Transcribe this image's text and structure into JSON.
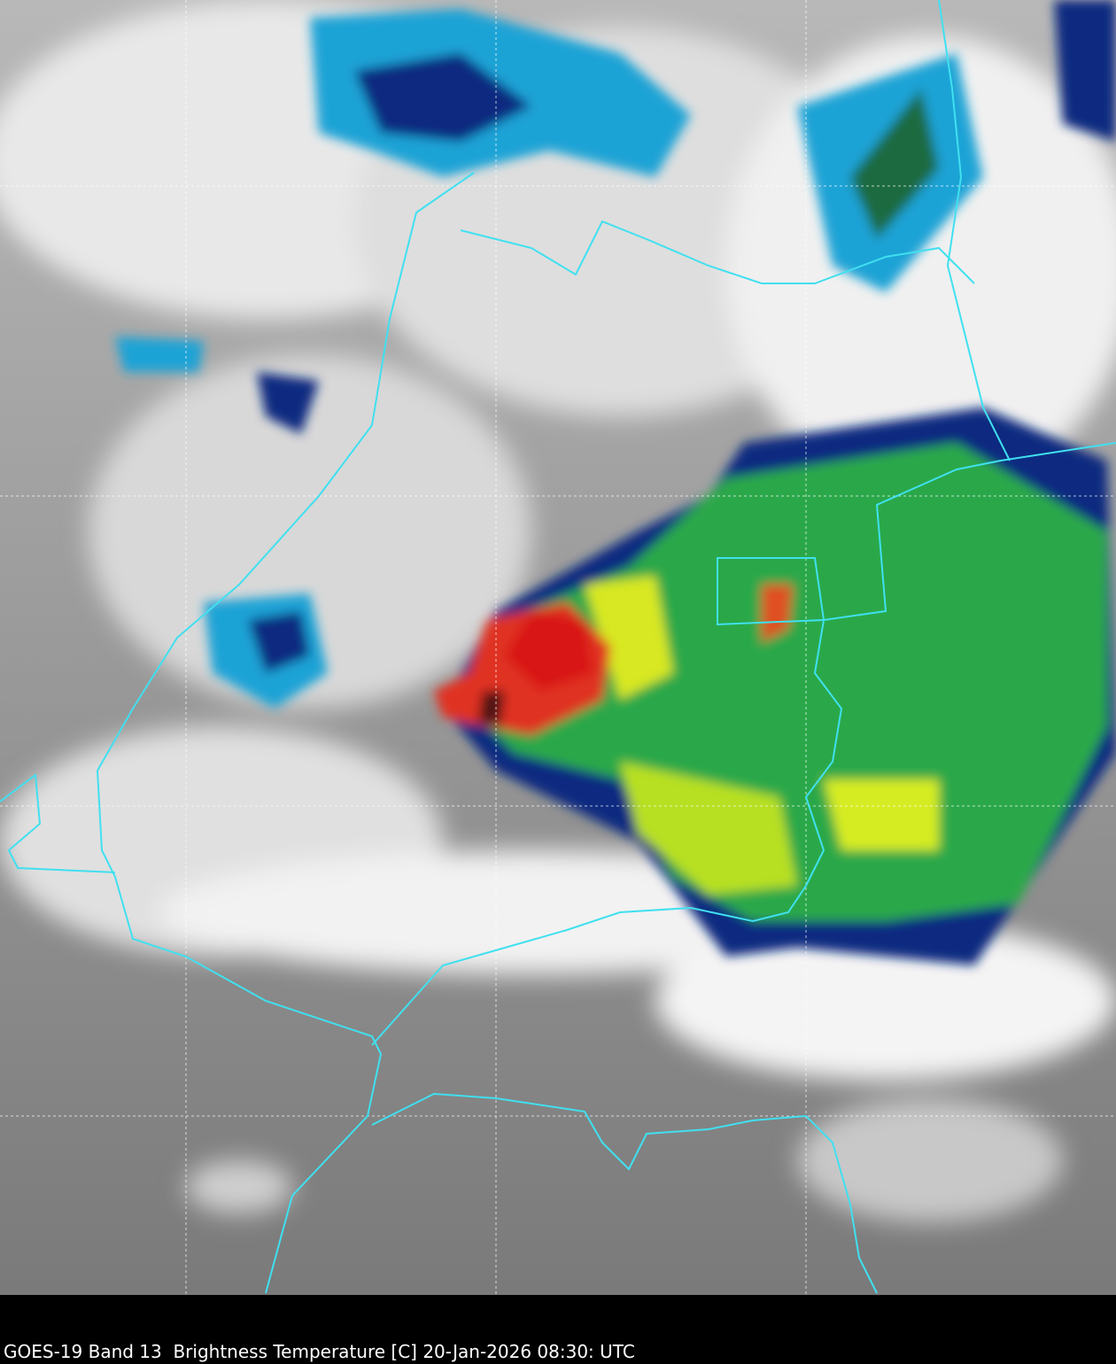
{
  "caption": "GOES-19 Band 13  Brightness Temperature [C] 20-Jan-2026 08:30: UTC"
}
